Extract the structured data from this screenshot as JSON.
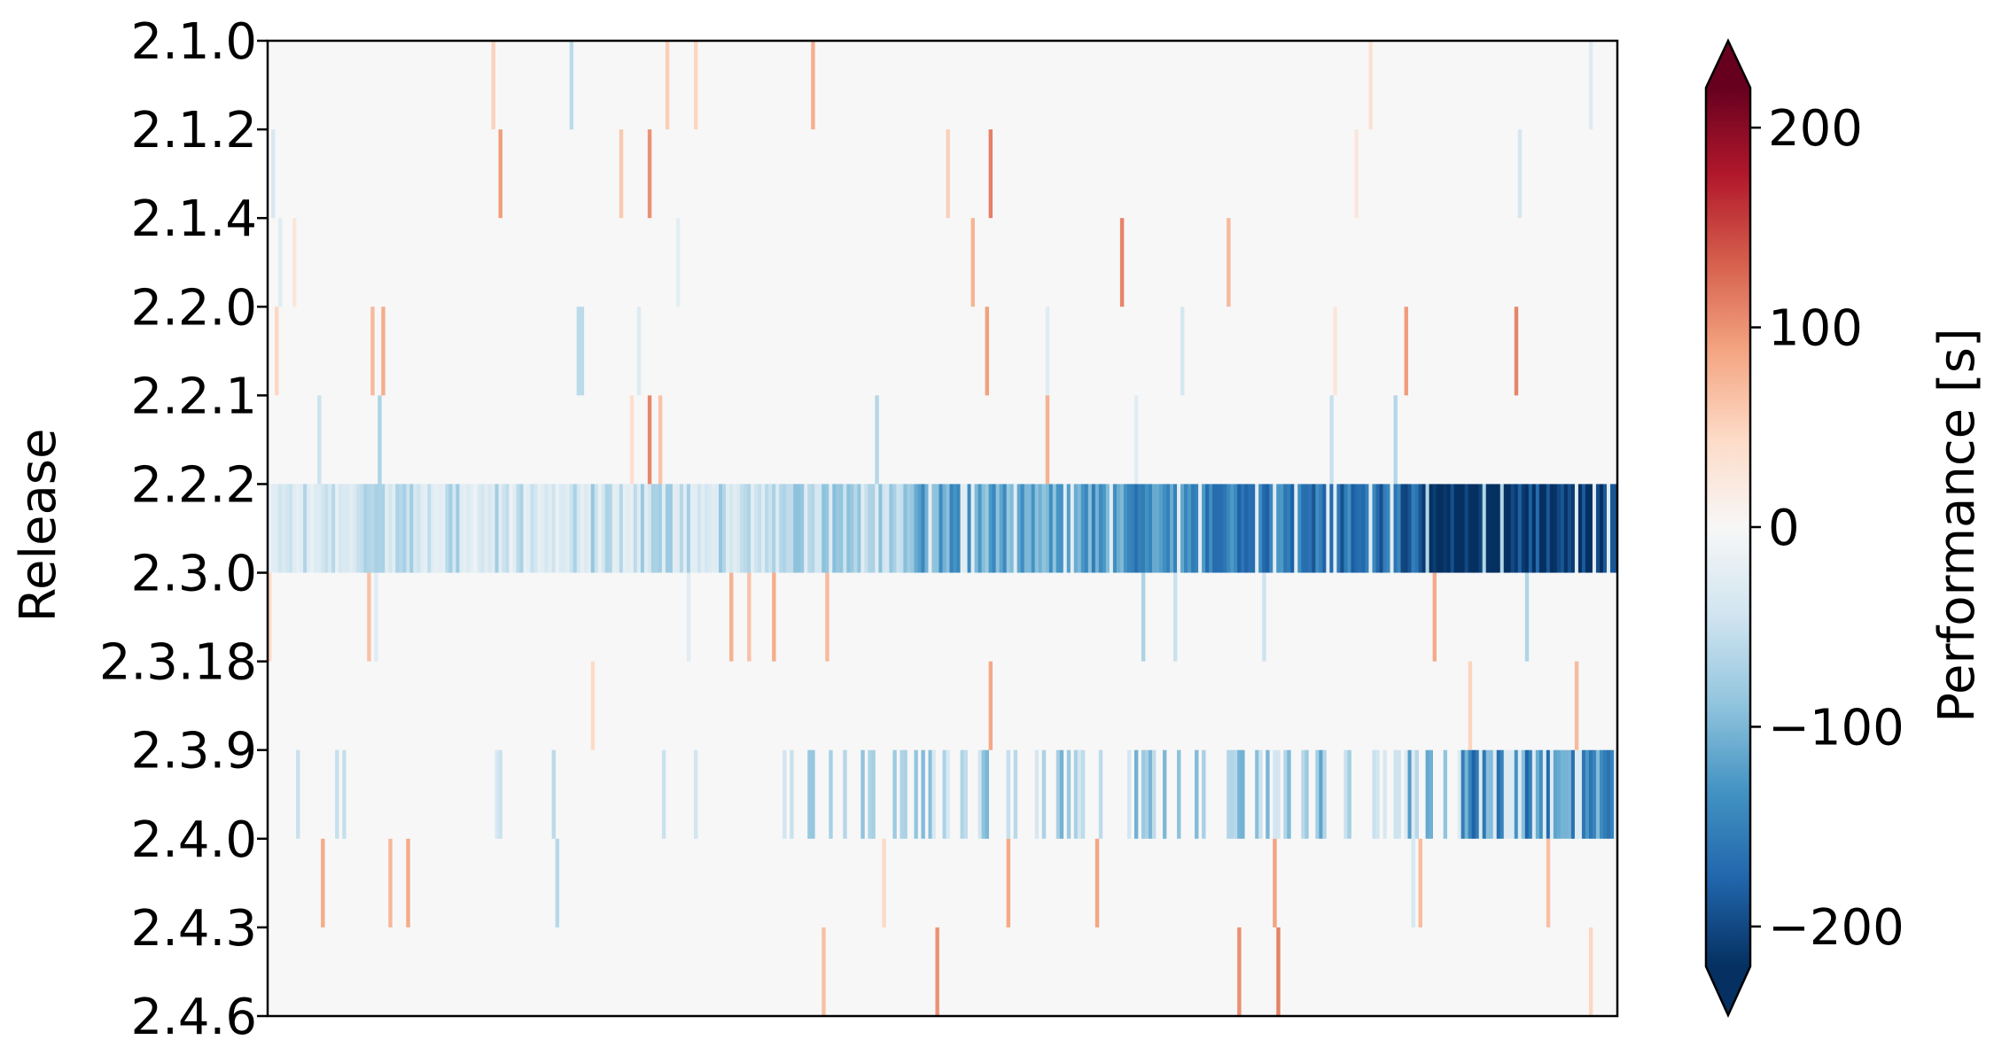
{
  "chart_data": {
    "type": "heatmap",
    "title": "",
    "xlabel": "",
    "ylabel": "Release",
    "y_categories": [
      "2.1.0",
      "2.1.2",
      "2.1.4",
      "2.2.0",
      "2.2.1",
      "2.2.2",
      "2.3.0",
      "2.3.18",
      "2.3.9",
      "2.4.0",
      "2.4.3",
      "2.4.6"
    ],
    "interval_rows": [
      {
        "from": "2.1.0",
        "to": "2.1.2",
        "profile": "neutral"
      },
      {
        "from": "2.1.2",
        "to": "2.1.4",
        "profile": "neutral"
      },
      {
        "from": "2.1.4",
        "to": "2.2.0",
        "profile": "neutral"
      },
      {
        "from": "2.2.0",
        "to": "2.2.1",
        "profile": "neutral"
      },
      {
        "from": "2.2.1",
        "to": "2.2.2",
        "profile": "neutral"
      },
      {
        "from": "2.2.2",
        "to": "2.3.0",
        "profile": "strong_negative"
      },
      {
        "from": "2.3.0",
        "to": "2.3.18",
        "profile": "neutral"
      },
      {
        "from": "2.3.18",
        "to": "2.3.9",
        "profile": "neutral"
      },
      {
        "from": "2.3.9",
        "to": "2.4.0",
        "profile": "moderate_negative"
      },
      {
        "from": "2.4.0",
        "to": "2.4.3",
        "profile": "neutral"
      },
      {
        "from": "2.4.3",
        "to": "2.4.6",
        "profile": "neutral"
      }
    ],
    "colorbar": {
      "label": "Performance [s]",
      "colormap": "RdBu_r",
      "vmin": -220,
      "vmax": 220,
      "extend": "both",
      "ticks": [
        {
          "value": 200,
          "label": "200"
        },
        {
          "value": 100,
          "label": "100"
        },
        {
          "value": 0,
          "label": "0"
        },
        {
          "value": -100,
          "label": "−100"
        },
        {
          "value": -200,
          "label": "−200"
        }
      ]
    },
    "grid": false,
    "legend": "colorbar-right"
  }
}
